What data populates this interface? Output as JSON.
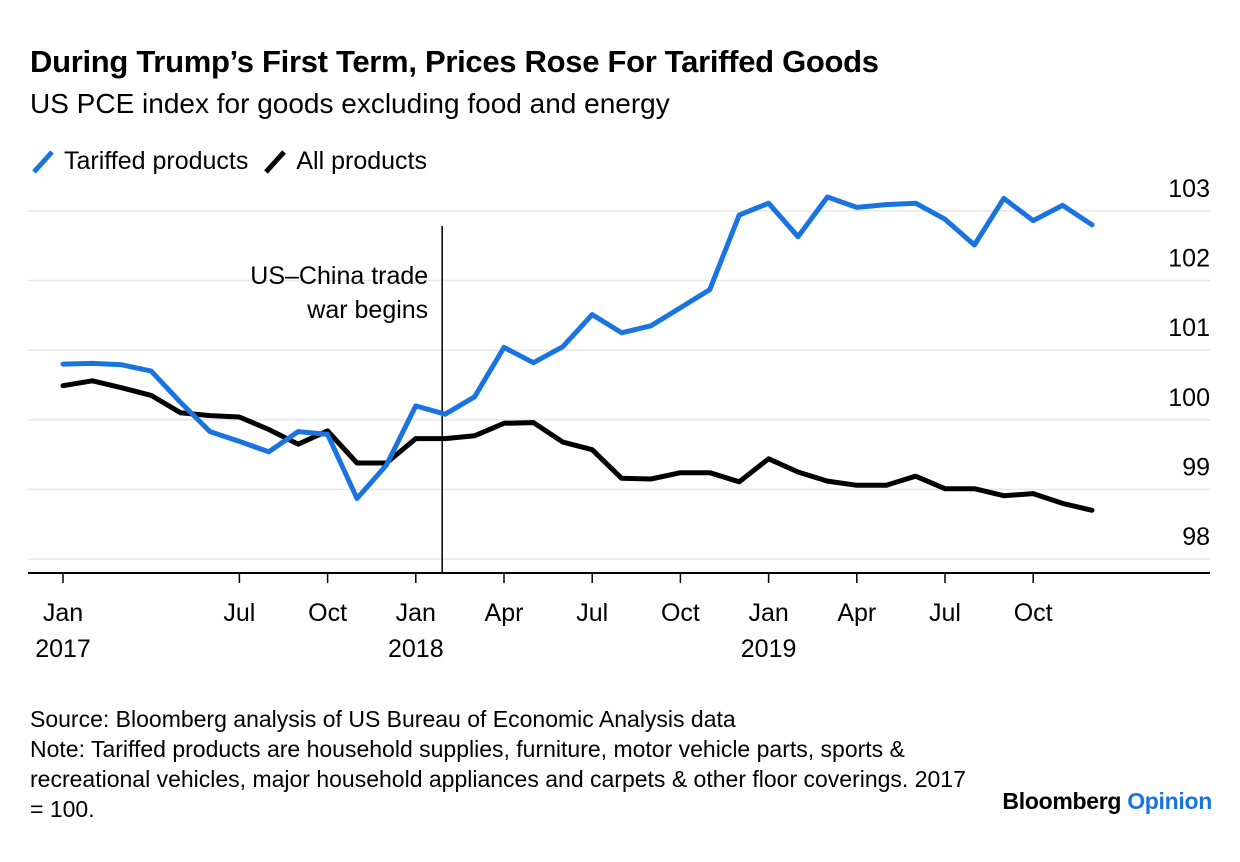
{
  "title": "During Trump’s First Term, Prices Rose For Tariffed Goods",
  "subtitle": "US PCE index for goods excluding food and energy",
  "source": "Source: Bloomberg analysis of US Bureau of Economic Analysis data",
  "note": "Note: Tariffed products are household supplies, furniture, motor vehicle parts, sports & recreational vehicles, major household appliances and carpets & other floor coverings. 2017 = 100.",
  "brand": {
    "name": "Bloomberg",
    "suffix": "Opinion"
  },
  "colors": {
    "tariffed": "#1a74e0",
    "all": "#000000",
    "grid": "#e6e6e6"
  },
  "chart_data": {
    "type": "line",
    "x": [
      "2017-01",
      "2017-02",
      "2017-03",
      "2017-04",
      "2017-05",
      "2017-06",
      "2017-07",
      "2017-08",
      "2017-09",
      "2017-10",
      "2017-11",
      "2017-12",
      "2018-01",
      "2018-02",
      "2018-03",
      "2018-04",
      "2018-05",
      "2018-06",
      "2018-07",
      "2018-08",
      "2018-09",
      "2018-10",
      "2018-11",
      "2018-12",
      "2019-01",
      "2019-02",
      "2019-03",
      "2019-04",
      "2019-05",
      "2019-06",
      "2019-07",
      "2019-08",
      "2019-09",
      "2019-10",
      "2019-11",
      "2019-12"
    ],
    "series": [
      {
        "name": "Tariffed products",
        "color": "#1a74e0",
        "values": [
          100.8,
          100.81,
          100.79,
          100.7,
          100.25,
          99.83,
          99.69,
          99.54,
          99.83,
          99.79,
          98.87,
          99.35,
          100.2,
          100.08,
          100.33,
          101.04,
          100.82,
          101.05,
          101.51,
          101.25,
          101.35,
          101.61,
          101.87,
          102.94,
          103.11,
          102.63,
          103.2,
          103.05,
          103.09,
          103.11,
          102.88,
          102.51,
          103.18,
          102.86,
          103.08,
          102.8
        ]
      },
      {
        "name": "All products",
        "color": "#000000",
        "values": [
          100.49,
          100.56,
          100.46,
          100.35,
          100.1,
          100.06,
          100.04,
          99.86,
          99.65,
          99.84,
          99.38,
          99.38,
          99.73,
          99.73,
          99.77,
          99.95,
          99.96,
          99.68,
          99.57,
          99.16,
          99.15,
          99.24,
          99.24,
          99.11,
          99.44,
          99.25,
          99.12,
          99.06,
          99.06,
          99.19,
          99.01,
          99.01,
          98.91,
          98.94,
          98.8,
          98.7
        ]
      }
    ],
    "ylim": [
      97.8,
      103.3
    ],
    "yticks": [
      "98",
      "99",
      "100",
      "101",
      "102",
      "103"
    ],
    "ytick_values": [
      98,
      99,
      100,
      101,
      102,
      103
    ],
    "y_axis_position": "right",
    "xtick_months": [
      "2017-01",
      "2017-07",
      "2017-10",
      "2018-01",
      "2018-04",
      "2018-07",
      "2018-10",
      "2019-01",
      "2019-04",
      "2019-07",
      "2019-10"
    ],
    "xtick_labels": [
      "Jan",
      "Jul",
      "Oct",
      "Jan",
      "Apr",
      "Jul",
      "Oct",
      "Jan",
      "Apr",
      "Jul",
      "Oct"
    ],
    "year_labels": [
      "2017",
      "2018",
      "2019"
    ],
    "year_label_months": [
      "2017-01",
      "2018-01",
      "2019-01"
    ],
    "grid": true,
    "legend": "top-left",
    "annotation": {
      "x": "2018-02",
      "lines": [
        "US–China trade",
        "war begins"
      ]
    }
  }
}
